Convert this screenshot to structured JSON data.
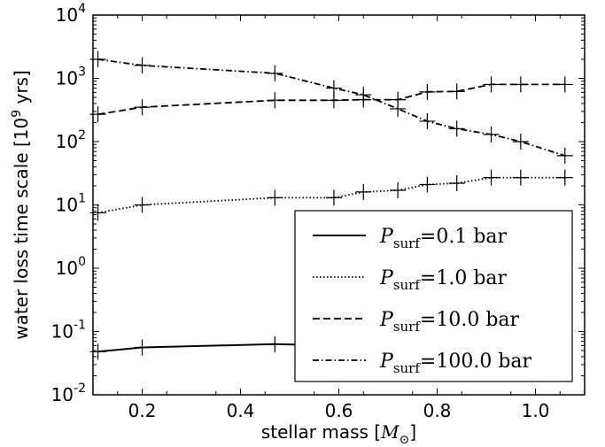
{
  "chart_data": {
    "type": "line",
    "xlabel": "stellar mass [",
    "xlabel_symbol": "M",
    "xlabel_sub": "⊙",
    "xlabel_end": "]",
    "ylabel": "water loss time scale [10",
    "ylabel_sup": "9",
    "ylabel_end": " yrs]",
    "xlim": [
      0.1,
      1.1
    ],
    "ylim_log10": [
      -2,
      4
    ],
    "y_scale": "log",
    "x_ticks": [
      {
        "value": 0.2,
        "label": "0.2"
      },
      {
        "value": 0.4,
        "label": "0.4"
      },
      {
        "value": 0.6,
        "label": "0.6"
      },
      {
        "value": 0.8,
        "label": "0.8"
      },
      {
        "value": 1.0,
        "label": "1.0"
      }
    ],
    "y_ticks": [
      {
        "exp": -2,
        "base": "10",
        "sup": "-2"
      },
      {
        "exp": -1,
        "base": "10",
        "sup": "-1"
      },
      {
        "exp": 0,
        "base": "10",
        "sup": "0"
      },
      {
        "exp": 1,
        "base": "10",
        "sup": "1"
      },
      {
        "exp": 2,
        "base": "10",
        "sup": "2"
      },
      {
        "exp": 3,
        "base": "10",
        "sup": "3"
      },
      {
        "exp": 4,
        "base": "10",
        "sup": "4"
      }
    ],
    "legend_position": "lower-right",
    "series": [
      {
        "legend_symbol": "P",
        "legend_sub": "surf",
        "legend_value": "=0.1 bar",
        "linestyle": "solid",
        "x": [
          0.11,
          0.2,
          0.47,
          0.59,
          0.65
        ],
        "y": [
          0.048,
          0.056,
          0.063,
          0.06,
          0.058
        ]
      },
      {
        "legend_symbol": "P",
        "legend_sub": "surf",
        "legend_value": "=1.0 bar",
        "linestyle": "dotted",
        "x": [
          0.11,
          0.2,
          0.47,
          0.59,
          0.65,
          0.72,
          0.78,
          0.84,
          0.91,
          0.97,
          1.06
        ],
        "y": [
          7.5,
          10,
          13,
          13,
          16,
          17,
          21,
          22,
          27,
          27,
          27
        ]
      },
      {
        "legend_symbol": "P",
        "legend_sub": "surf",
        "legend_value": "=10.0 bar",
        "linestyle": "dashed",
        "x": [
          0.11,
          0.2,
          0.47,
          0.59,
          0.65,
          0.72,
          0.78,
          0.84,
          0.91,
          0.97,
          1.06
        ],
        "y": [
          270,
          350,
          450,
          450,
          460,
          460,
          610,
          620,
          800,
          800,
          800
        ]
      },
      {
        "legend_symbol": "P",
        "legend_sub": "surf",
        "legend_value": "=100.0 bar",
        "linestyle": "dashdot",
        "x": [
          0.11,
          0.2,
          0.47,
          0.59,
          0.65,
          0.72,
          0.78,
          0.84,
          0.91,
          0.97,
          1.06
        ],
        "y": [
          2000,
          1600,
          1200,
          700,
          550,
          330,
          210,
          160,
          130,
          100,
          60
        ]
      }
    ]
  }
}
